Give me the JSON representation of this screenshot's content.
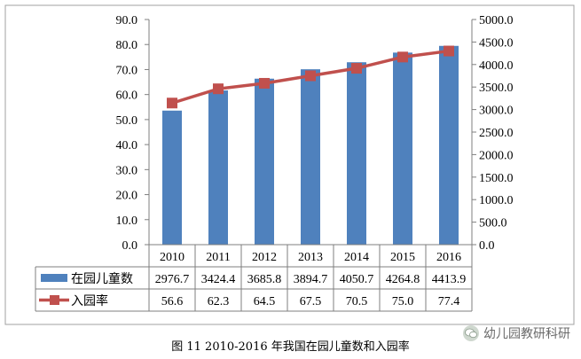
{
  "chart_data": {
    "type": "bar",
    "categories": [
      "2010",
      "2011",
      "2012",
      "2013",
      "2014",
      "2015",
      "2016"
    ],
    "series": [
      {
        "name": "在园儿童数",
        "type": "bar",
        "axis": "right",
        "values": [
          2976.7,
          3424.4,
          3685.8,
          3894.7,
          4050.7,
          4264.8,
          4413.9
        ],
        "color": "#4f81bd"
      },
      {
        "name": "入园率",
        "type": "line",
        "axis": "left",
        "values": [
          56.6,
          62.3,
          64.5,
          67.5,
          70.5,
          75.0,
          77.4
        ],
        "color": "#c0504d"
      }
    ],
    "yleft_ticks": [
      "0.0",
      "10.0",
      "20.0",
      "30.0",
      "40.0",
      "50.0",
      "60.0",
      "70.0",
      "80.0",
      "90.0"
    ],
    "yright_ticks": [
      "0.0",
      "500.0",
      "1000.0",
      "1500.0",
      "2000.0",
      "2500.0",
      "3000.0",
      "3500.0",
      "4000.0",
      "4500.0",
      "5000.0"
    ],
    "yleft_range": [
      0,
      90
    ],
    "yright_range": [
      0,
      5000
    ],
    "table": {
      "rows": [
        [
          "2976.7",
          "3424.4",
          "3685.8",
          "3894.7",
          "4050.7",
          "4264.8",
          "4413.9"
        ],
        [
          "56.6",
          "62.3",
          "64.5",
          "67.5",
          "70.5",
          "75.0",
          "77.4"
        ]
      ]
    },
    "grid": false,
    "legend": "data-table"
  },
  "caption": "图 11 2010-2016 年我国在园儿童数和入园率",
  "watermark": {
    "text": "幼儿园教研科研",
    "icon": "wechat-icon"
  }
}
